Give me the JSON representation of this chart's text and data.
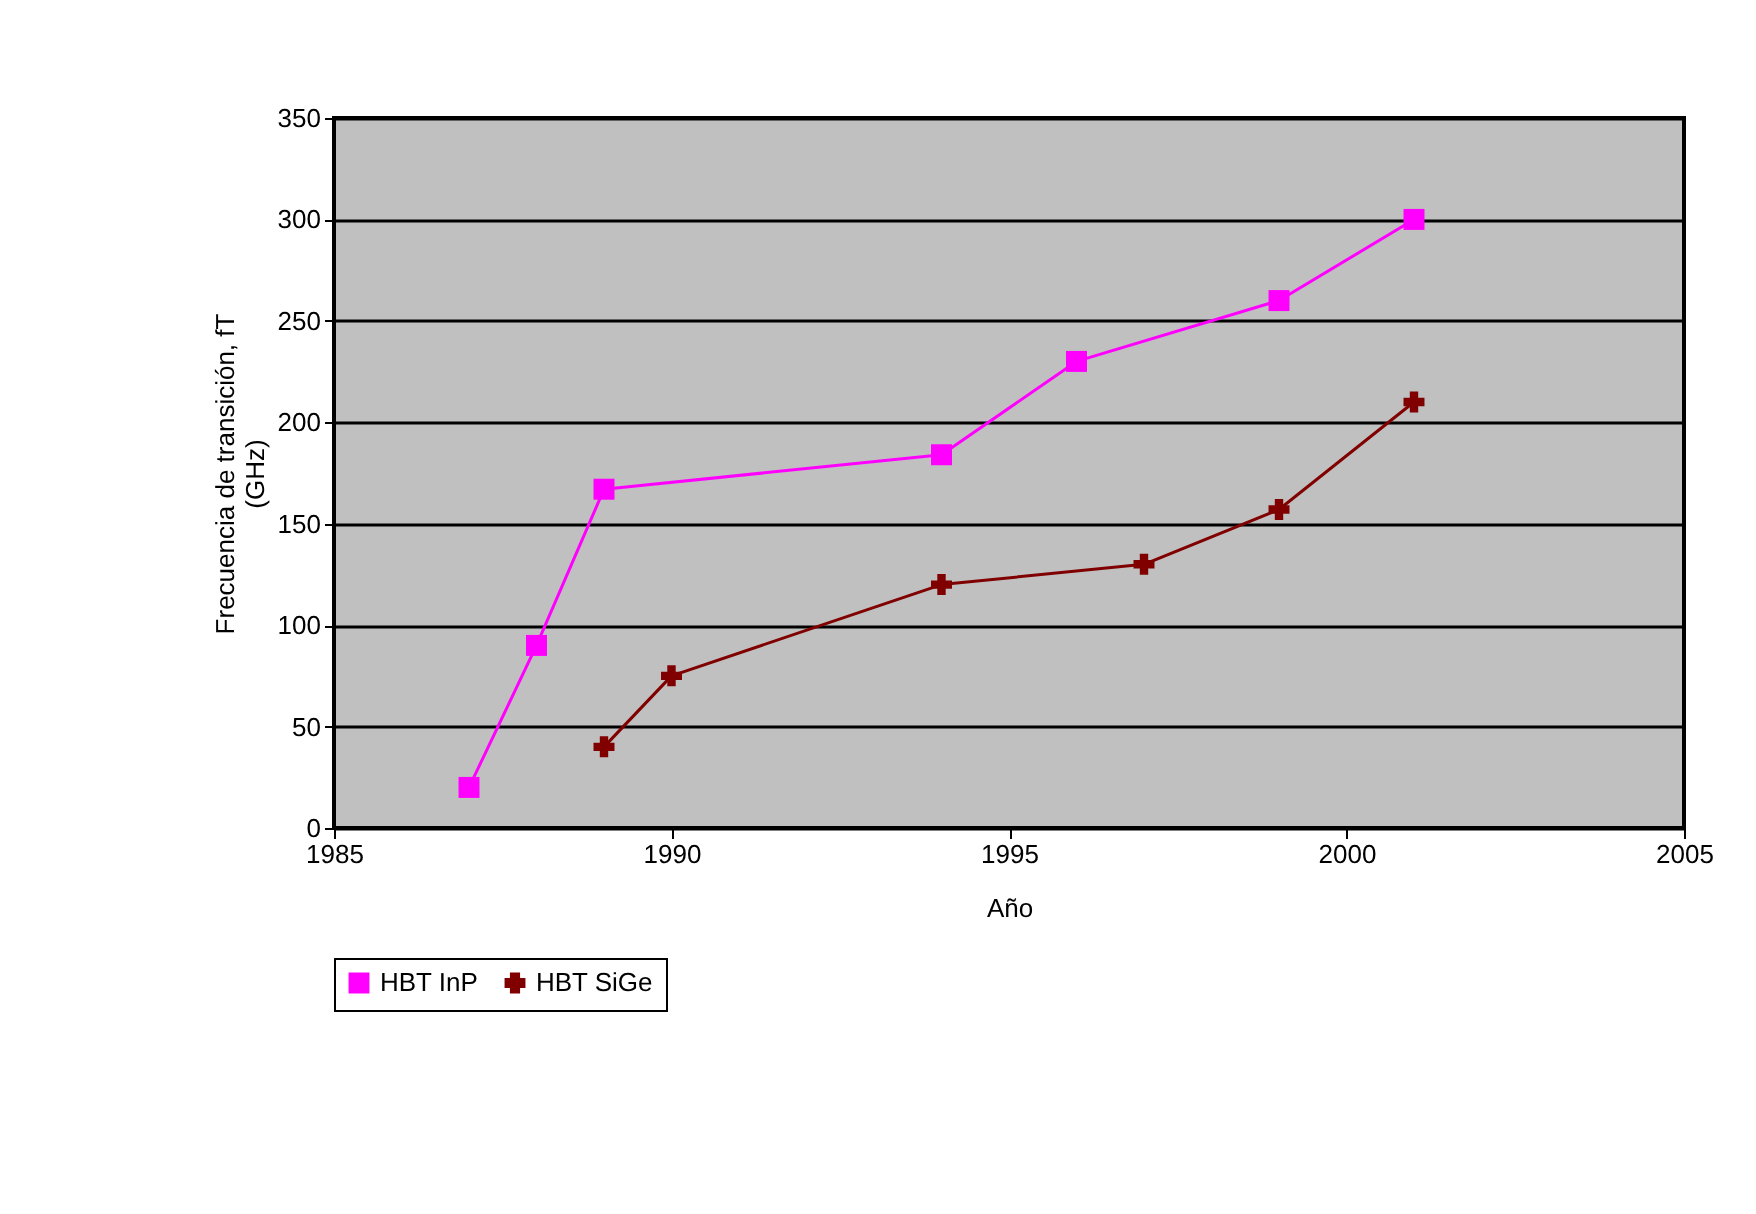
{
  "chart_data": {
    "type": "line",
    "xlabel": "Año",
    "ylabel": "Frecuencia de transición, fT (GHz)",
    "xlim": [
      1985,
      2005
    ],
    "xticks": [
      1985,
      1990,
      1995,
      2000,
      2005
    ],
    "ylim": [
      0,
      350
    ],
    "yticks": [
      0,
      50,
      100,
      150,
      200,
      250,
      300,
      350
    ],
    "grid": "y",
    "legend": "bottom",
    "line_style": "solid",
    "series": [
      {
        "name": "HBT InP",
        "color": "#ff00ff",
        "marker": "square",
        "x": [
          1987,
          1988,
          1989,
          1994,
          1996,
          1999,
          2001
        ],
        "values": [
          20,
          90,
          167,
          184,
          230,
          260,
          300
        ]
      },
      {
        "name": "HBT SiGe",
        "color": "#800000",
        "marker": "cross",
        "x": [
          1989,
          1990,
          1994,
          1997,
          1999,
          2001
        ],
        "values": [
          40,
          75,
          120,
          130,
          157,
          210
        ]
      }
    ]
  }
}
